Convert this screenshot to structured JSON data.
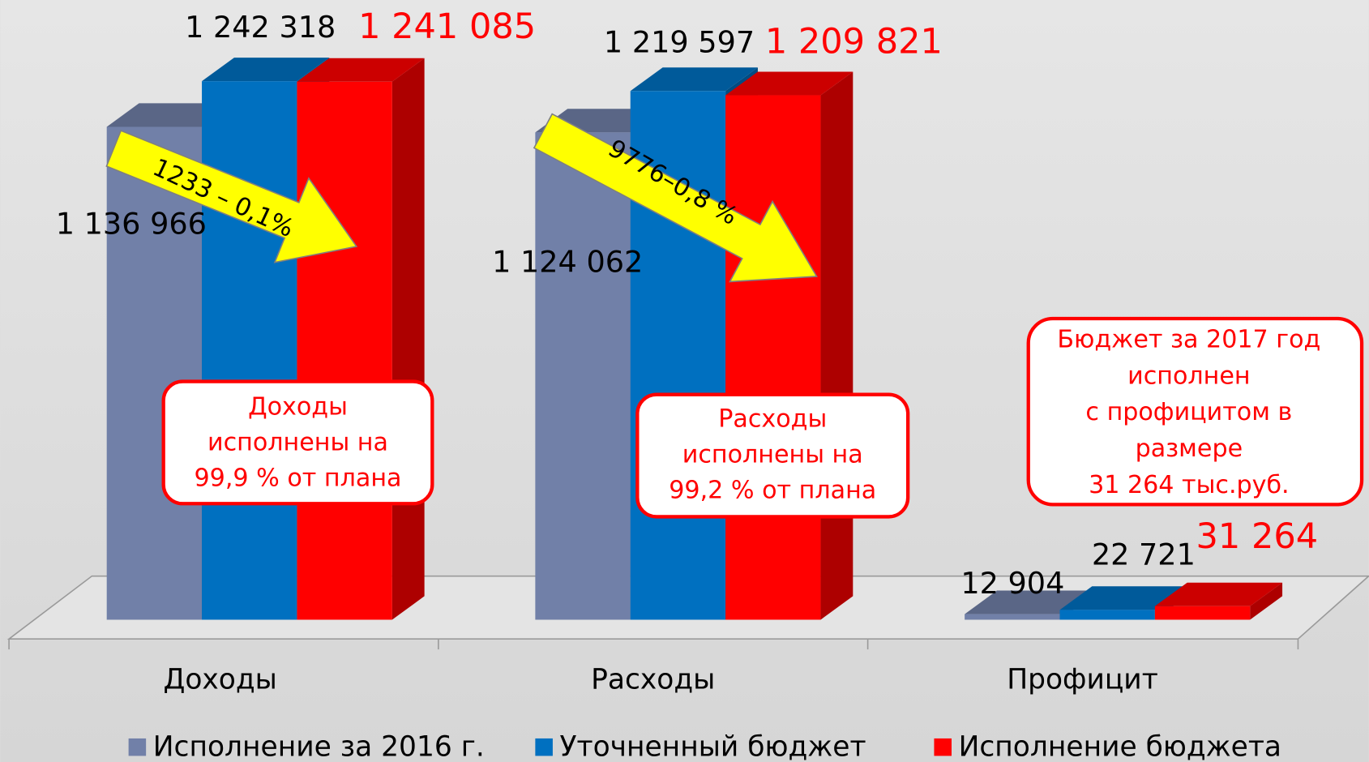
{
  "chart_data": {
    "type": "bar3d",
    "categories": [
      "Доходы",
      "Расходы",
      "Профицит"
    ],
    "series": [
      {
        "name": "Исполнение за 2016 г.",
        "color": "#7180a8",
        "values": [
          1136966,
          1124062,
          12904
        ],
        "value_labels": [
          "1 136 966",
          "1 124 062",
          "12 904"
        ]
      },
      {
        "name": "Уточненный бюджет",
        "color": "#0070c0",
        "values": [
          1242318,
          1219597,
          22721
        ],
        "value_labels": [
          "1 242 318",
          "1 219 597",
          "22 721"
        ]
      },
      {
        "name": "Исполнение бюджета",
        "color": "#ff0000",
        "values": [
          1241085,
          1209821,
          31264
        ],
        "value_labels": [
          "1 241 085",
          "1 209 821",
          "31 264"
        ]
      }
    ],
    "annotations": {
      "arrows": [
        "1233 – 0,1%",
        "9776–0,8 %"
      ],
      "boxes": [
        {
          "lines": [
            "Доходы",
            "исполнены на",
            "99,9 % от плана"
          ]
        },
        {
          "lines": [
            "Расходы",
            "исполнены на",
            "99,2 % от плана"
          ]
        },
        {
          "lines": [
            "Бюджет за 2017 год",
            "исполнен",
            "с профицитом в",
            "размере",
            "31 264 тыс.руб."
          ]
        }
      ]
    }
  }
}
